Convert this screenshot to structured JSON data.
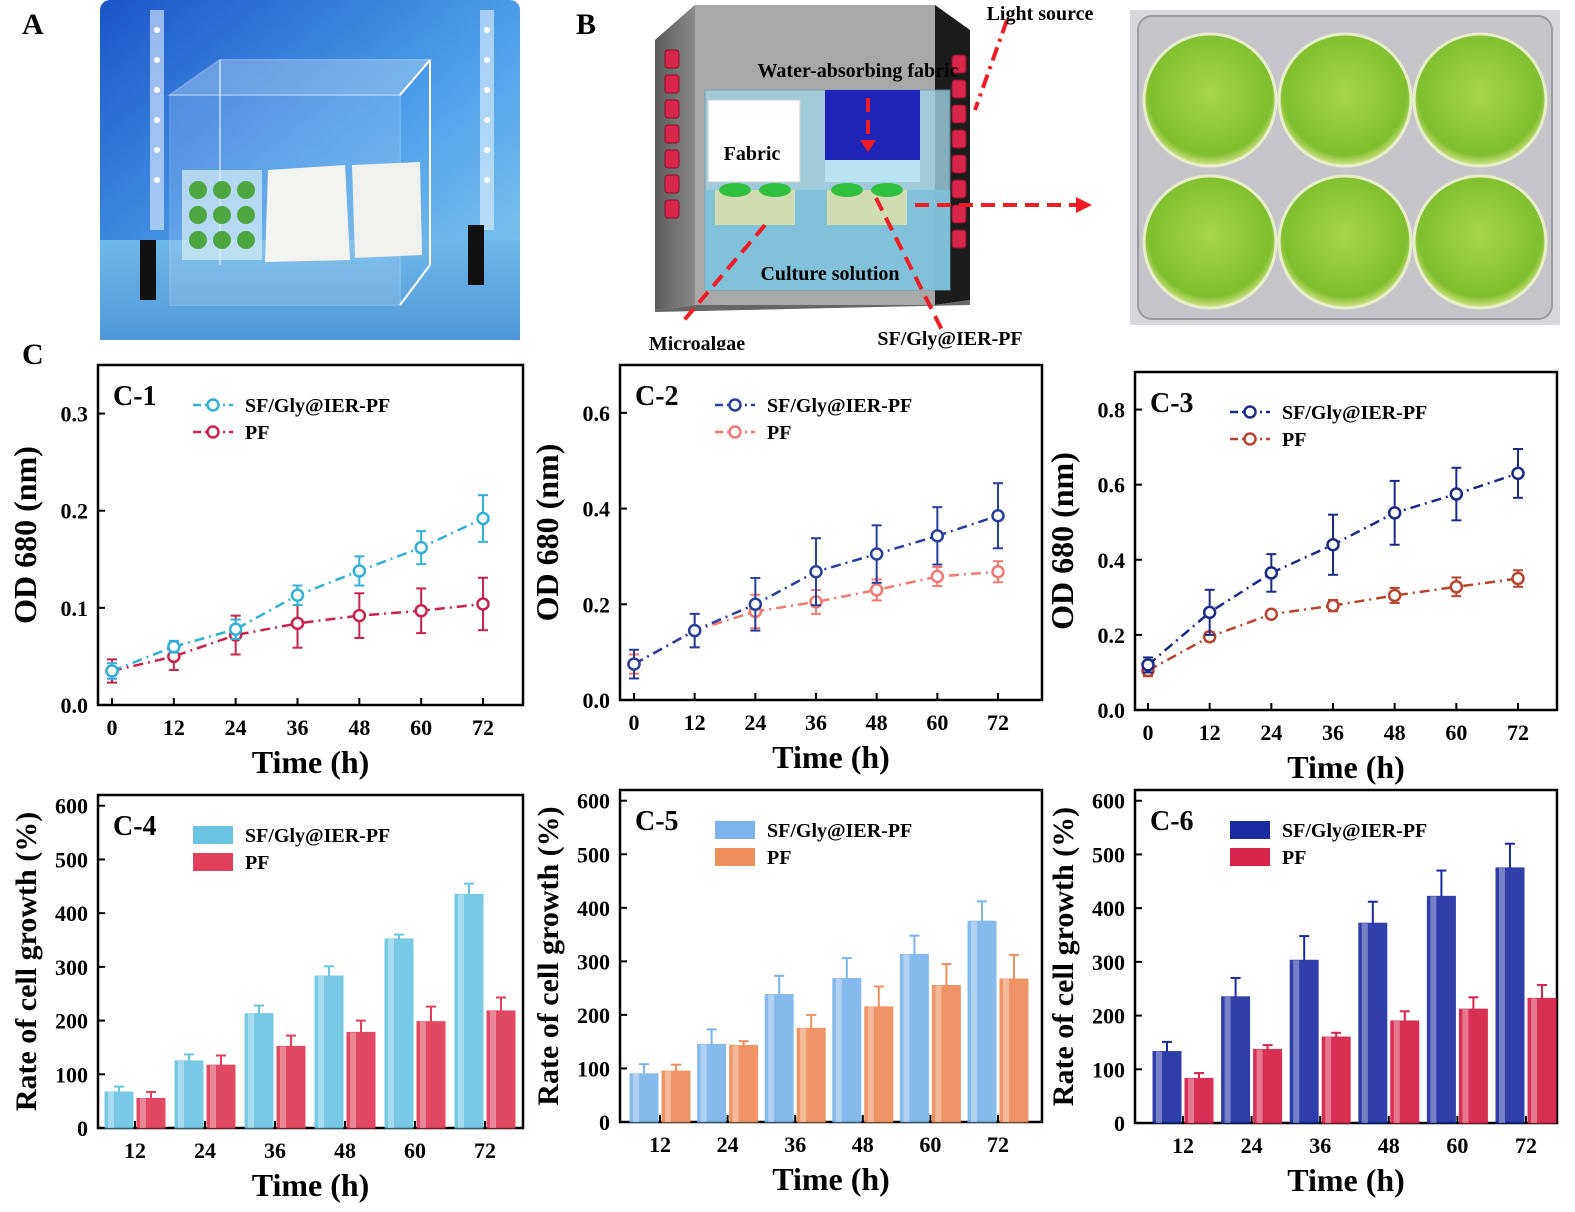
{
  "panels": {
    "A": {
      "letter": "A"
    },
    "B": {
      "letter": "B",
      "labels": {
        "light_source": "Light source",
        "water_fabric": "Water-absorbing fabric",
        "fabric": "Fabric",
        "culture": "Culture solution",
        "microalgae": "Microalgae",
        "sfgly": "SF/Gly@IER-PF"
      }
    },
    "C": {
      "letter": "C"
    }
  },
  "colors": {
    "c1_a": "#33b0d6",
    "c1_b": "#c8234d",
    "c2_a": "#2a3f9a",
    "c2_b": "#f07a72",
    "c3_a": "#1b2a86",
    "c3_b": "#b5452e",
    "c4_a": "#69c4e2",
    "c4_b": "#e0405a",
    "c5_a": "#7bb3ea",
    "c5_b": "#ef8f5e",
    "c6_a": "#1a2aa0",
    "c6_b": "#d6244c"
  },
  "chart_data": [
    {
      "id": "C-1",
      "type": "line",
      "label": "C-1",
      "x": [
        0,
        12,
        24,
        36,
        48,
        60,
        72
      ],
      "xlabel": "Time (h)",
      "ylabel": "OD 680 (nm)",
      "xlim": [
        0,
        72
      ],
      "ylim": [
        0,
        0.35
      ],
      "yticks": [
        "0.0",
        "0.1",
        "0.2",
        "0.3"
      ],
      "ytick_values": [
        0,
        0.1,
        0.2,
        0.3
      ],
      "legend": "top-left",
      "series": [
        {
          "name": "SF/Gly@IER-PF",
          "values": [
            0.035,
            0.06,
            0.078,
            0.113,
            0.138,
            0.162,
            0.192
          ],
          "err": [
            0.008,
            0.006,
            0.01,
            0.01,
            0.015,
            0.017,
            0.024
          ]
        },
        {
          "name": "PF",
          "values": [
            0.035,
            0.05,
            0.072,
            0.084,
            0.092,
            0.097,
            0.104
          ],
          "err": [
            0.012,
            0.014,
            0.02,
            0.025,
            0.023,
            0.023,
            0.027
          ]
        }
      ]
    },
    {
      "id": "C-2",
      "type": "line",
      "label": "C-2",
      "x": [
        0,
        12,
        24,
        36,
        48,
        60,
        72
      ],
      "xlabel": "Time (h)",
      "ylabel": "OD 680 (nm)",
      "xlim": [
        0,
        72
      ],
      "ylim": [
        0,
        0.7
      ],
      "yticks": [
        "0.0",
        "0.2",
        "0.4",
        "0.6"
      ],
      "ytick_values": [
        0,
        0.2,
        0.4,
        0.6
      ],
      "legend": "top-left",
      "series": [
        {
          "name": "SF/Gly@IER-PF",
          "values": [
            0.075,
            0.145,
            0.2,
            0.268,
            0.305,
            0.343,
            0.385
          ],
          "err": [
            0.03,
            0.035,
            0.055,
            0.07,
            0.06,
            0.06,
            0.068
          ]
        },
        {
          "name": "PF",
          "values": [
            0.075,
            0.145,
            0.185,
            0.205,
            0.23,
            0.258,
            0.268
          ],
          "err": [
            0.02,
            0.035,
            0.035,
            0.025,
            0.022,
            0.02,
            0.022
          ]
        }
      ]
    },
    {
      "id": "C-3",
      "type": "line",
      "label": "C-3",
      "x": [
        0,
        12,
        24,
        36,
        48,
        60,
        72
      ],
      "xlabel": "Time (h)",
      "ylabel": "OD 680 (nm)",
      "xlim": [
        0,
        72
      ],
      "ylim": [
        0,
        0.9
      ],
      "yticks": [
        "0.0",
        "0.2",
        "0.4",
        "0.6",
        "0.8"
      ],
      "ytick_values": [
        0,
        0.2,
        0.4,
        0.6,
        0.8
      ],
      "legend": "top-left",
      "series": [
        {
          "name": "SF/Gly@IER-PF",
          "values": [
            0.12,
            0.26,
            0.365,
            0.44,
            0.525,
            0.575,
            0.63
          ],
          "err": [
            0.02,
            0.06,
            0.05,
            0.08,
            0.085,
            0.07,
            0.065
          ]
        },
        {
          "name": "PF",
          "values": [
            0.105,
            0.195,
            0.255,
            0.278,
            0.305,
            0.328,
            0.35
          ],
          "err": [
            0.015,
            0.012,
            0.01,
            0.015,
            0.02,
            0.025,
            0.022
          ]
        }
      ]
    },
    {
      "id": "C-4",
      "type": "bar",
      "label": "C-4",
      "categories": [
        "12",
        "24",
        "36",
        "48",
        "60",
        "72"
      ],
      "xlabel": "Time (h)",
      "ylabel": "Rate of cell growth (%)",
      "ylim": [
        0,
        620
      ],
      "yticks": [
        "0",
        "100",
        "200",
        "300",
        "400",
        "500",
        "600"
      ],
      "ytick_values": [
        0,
        100,
        200,
        300,
        400,
        500,
        600
      ],
      "legend": "top-left",
      "series": [
        {
          "name": "SF/Gly@IER-PF",
          "values": [
            67,
            125,
            213,
            283,
            352,
            435
          ],
          "err": [
            10,
            12,
            15,
            18,
            8,
            20
          ]
        },
        {
          "name": "PF",
          "values": [
            55,
            117,
            152,
            178,
            198,
            218
          ],
          "err": [
            12,
            18,
            20,
            22,
            28,
            25
          ]
        }
      ]
    },
    {
      "id": "C-5",
      "type": "bar",
      "label": "C-5",
      "categories": [
        "12",
        "24",
        "36",
        "48",
        "60",
        "72"
      ],
      "xlabel": "Time (h)",
      "ylabel": "Rate of cell growth (%)",
      "ylim": [
        0,
        620
      ],
      "yticks": [
        "0",
        "100",
        "200",
        "300",
        "400",
        "500",
        "600"
      ],
      "ytick_values": [
        0,
        100,
        200,
        300,
        400,
        500,
        600
      ],
      "legend": "top-left",
      "series": [
        {
          "name": "SF/Gly@IER-PF",
          "values": [
            90,
            145,
            238,
            268,
            313,
            375
          ],
          "err": [
            18,
            28,
            35,
            38,
            35,
            37
          ]
        },
        {
          "name": "PF",
          "values": [
            95,
            143,
            175,
            215,
            255,
            267
          ],
          "err": [
            12,
            8,
            25,
            38,
            40,
            45
          ]
        }
      ]
    },
    {
      "id": "C-6",
      "type": "bar",
      "label": "C-6",
      "categories": [
        "12",
        "24",
        "36",
        "48",
        "60",
        "72"
      ],
      "xlabel": "Time (h)",
      "ylabel": "Rate of cell growth (%)",
      "ylim": [
        0,
        620
      ],
      "yticks": [
        "0",
        "100",
        "200",
        "300",
        "400",
        "500",
        "600"
      ],
      "ytick_values": [
        0,
        100,
        200,
        300,
        400,
        500,
        600
      ],
      "legend": "top-left",
      "series": [
        {
          "name": "SF/Gly@IER-PF",
          "values": [
            133,
            235,
            303,
            372,
            422,
            475
          ],
          "err": [
            18,
            35,
            45,
            40,
            48,
            45
          ]
        },
        {
          "name": "PF",
          "values": [
            83,
            137,
            160,
            190,
            212,
            232
          ],
          "err": [
            10,
            8,
            8,
            18,
            22,
            25
          ]
        }
      ]
    }
  ]
}
